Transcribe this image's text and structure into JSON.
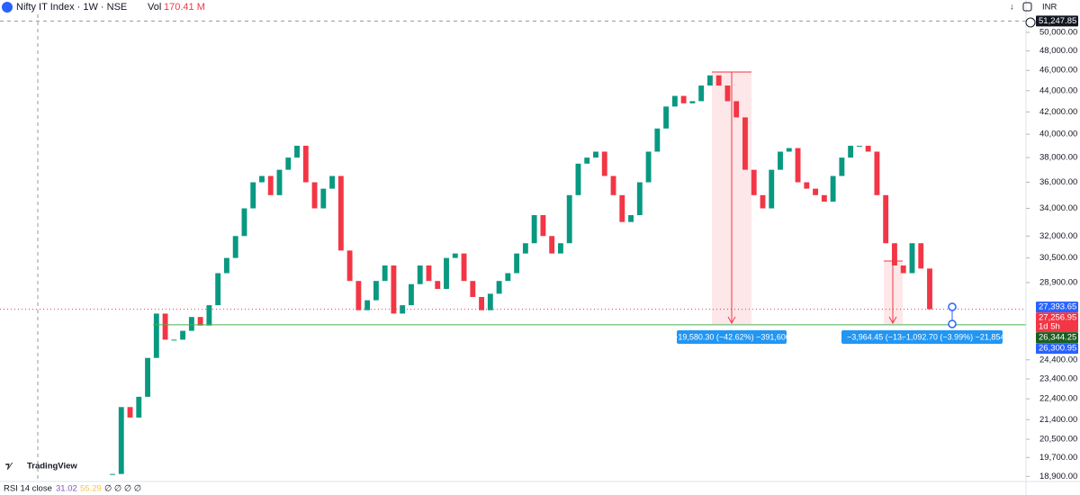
{
  "header": {
    "symbol": "Nifty IT Index · 1W · NSE",
    "vol_label": "Vol",
    "vol_value": "170.41 M",
    "currency": "INR",
    "brand": "TradingView",
    "indicator": "RSI 14 close",
    "rsi_value": "31.02",
    "rsi_ma": "55.29",
    "rsi_extra": "∅ ∅ ∅ ∅"
  },
  "measurements": [
    "−19,580.30 (−42.62%) −391,606",
    "−3,964.45 (−13.0",
    "−1,092.70 (−3.99%) −21,854"
  ],
  "chart_data": {
    "type": "candlestick",
    "log_scale": true,
    "up_color": "#089981",
    "down_color": "#f23645",
    "values": [
      19000,
      22000,
      21500,
      22500,
      24500,
      27000,
      25500,
      25500,
      26000,
      26800,
      26300,
      27500,
      29500,
      30500,
      32000,
      34000,
      36000,
      36500,
      35000,
      37000,
      38000,
      39000,
      36000,
      34000,
      35500,
      36500,
      31000,
      29000,
      27200,
      27800,
      29000,
      30000,
      27000,
      27500,
      28800,
      30000,
      29000,
      28500,
      30500,
      30800,
      29000,
      28000,
      27200,
      28200,
      29000,
      29500,
      30800,
      31500,
      33500,
      32000,
      30800,
      31500,
      35000,
      37500,
      38000,
      38500,
      36500,
      35000,
      33000,
      33500,
      36000,
      38500,
      40500,
      42500,
      43500,
      42800,
      43000,
      44500,
      45500,
      44500,
      43000,
      41500,
      37000,
      35000,
      34000,
      37000,
      38500,
      38800,
      36000,
      35500,
      35000,
      34500,
      36500,
      38000,
      39000,
      39000,
      38500,
      35000,
      31500,
      30000,
      29500,
      31500,
      29800,
      27256.95
    ],
    "ylim": [
      18800,
      51800
    ],
    "yticks": [
      {
        "value": 18900,
        "label": "18,900.00"
      },
      {
        "value": 19700,
        "label": "19,700.00"
      },
      {
        "value": 20500,
        "label": "20,500.00"
      },
      {
        "value": 21400,
        "label": "21,400.00"
      },
      {
        "value": 22400,
        "label": "22,400.00"
      },
      {
        "value": 23400,
        "label": "23,400.00"
      },
      {
        "value": 24400,
        "label": "24,400.00"
      },
      {
        "value": 28900,
        "label": "28,900.00"
      },
      {
        "value": 30500,
        "label": "30,500.00"
      },
      {
        "value": 32000,
        "label": "32,000.00"
      },
      {
        "value": 34000,
        "label": "34,000.00"
      },
      {
        "value": 36000,
        "label": "36,000.00"
      },
      {
        "value": 38000,
        "label": "38,000.00"
      },
      {
        "value": 40000,
        "label": "40,000.00"
      },
      {
        "value": 42000,
        "label": "42,000.00"
      },
      {
        "value": 44000,
        "label": "44,000.00"
      },
      {
        "value": 46000,
        "label": "46,000.00"
      },
      {
        "value": 48000,
        "label": "48,000.00"
      },
      {
        "value": 50000,
        "label": "50,000.00"
      }
    ],
    "price_labels": [
      {
        "value": 51247.85,
        "label": "51,247.85",
        "color": "#131722"
      },
      {
        "value": 27393.65,
        "label": "27,393.65",
        "color": "#2962ff"
      },
      {
        "value": 27256.95,
        "label": "27,256.95",
        "sub": "1d 5h",
        "color": "#f23645"
      },
      {
        "value": 26344.25,
        "label": "26,344.25",
        "color": "#1b5e20"
      },
      {
        "value": 26300.95,
        "label": "26,300.95",
        "color": "#2962ff"
      }
    ]
  }
}
